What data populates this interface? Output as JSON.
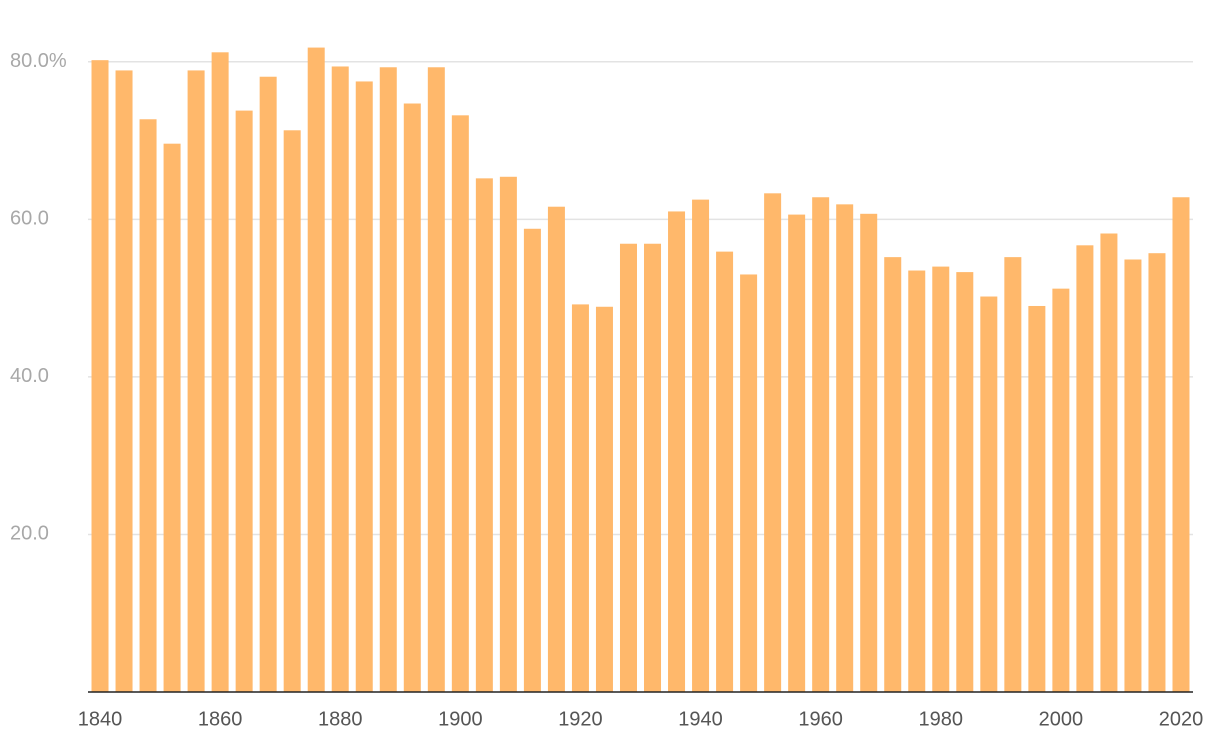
{
  "chart_data": {
    "type": "bar",
    "x": [
      1840,
      1844,
      1848,
      1852,
      1856,
      1860,
      1864,
      1868,
      1872,
      1876,
      1880,
      1884,
      1888,
      1892,
      1896,
      1900,
      1904,
      1908,
      1912,
      1916,
      1920,
      1924,
      1928,
      1932,
      1936,
      1940,
      1944,
      1948,
      1952,
      1956,
      1960,
      1964,
      1968,
      1972,
      1976,
      1980,
      1984,
      1988,
      1992,
      1996,
      2000,
      2004,
      2008,
      2012,
      2016,
      2020
    ],
    "values": [
      80.2,
      78.9,
      72.7,
      69.6,
      78.9,
      81.2,
      73.8,
      78.1,
      71.3,
      81.8,
      79.4,
      77.5,
      79.3,
      74.7,
      79.3,
      73.2,
      65.2,
      65.4,
      58.8,
      61.6,
      49.2,
      48.9,
      56.9,
      56.9,
      61.0,
      62.5,
      55.9,
      53.0,
      63.3,
      60.6,
      62.8,
      61.9,
      60.7,
      55.2,
      53.5,
      54.0,
      53.3,
      50.2,
      55.2,
      49.0,
      51.2,
      56.7,
      58.2,
      54.9,
      55.7,
      62.8
    ],
    "color": "#ffb86b",
    "xlim": [
      1838,
      2022
    ],
    "xticks": [
      1840,
      1860,
      1880,
      1900,
      1920,
      1940,
      1960,
      1980,
      2000,
      2020
    ],
    "ylim": [
      0,
      82
    ],
    "yticks": [
      {
        "value": 20,
        "label": "20.0"
      },
      {
        "value": 40,
        "label": "40.0"
      },
      {
        "value": 60,
        "label": "60.0"
      },
      {
        "value": 80,
        "label": "80.0%"
      }
    ],
    "grid": true
  }
}
